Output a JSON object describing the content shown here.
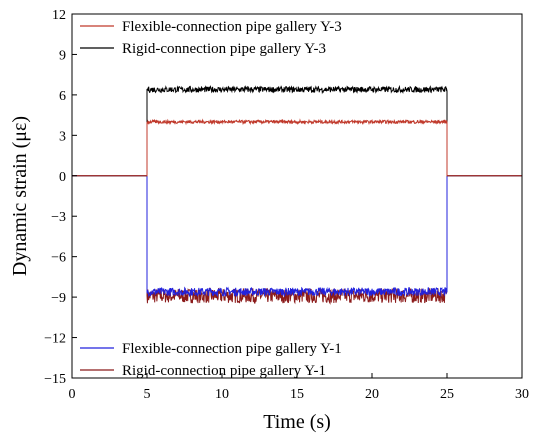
{
  "chart_data": {
    "type": "line",
    "title": "",
    "xlabel": "Time (s)",
    "ylabel": "Dynamic strain (με)",
    "xlim": [
      0,
      30
    ],
    "ylim": [
      -15,
      12
    ],
    "xticks": [
      0,
      5,
      10,
      15,
      20,
      25,
      30
    ],
    "yticks": [
      -15,
      -12,
      -9,
      -6,
      -3,
      0,
      3,
      6,
      9,
      12
    ],
    "grid": false,
    "legends": [
      {
        "placement": "top-left",
        "entries": [
          "Flexible-connection pipe gallery Y-3",
          "Rigid-connection pipe gallery  Y-3"
        ]
      },
      {
        "placement": "bottom-left",
        "entries": [
          "Flexible-connection pipe gallery Y-1",
          "Rigid-connection pipe gallery  Y-1"
        ]
      }
    ],
    "series": [
      {
        "name": "Flexible-connection pipe gallery Y-3",
        "color": "#c0392b",
        "x": [
          0,
          5,
          5,
          25,
          25,
          30
        ],
        "y": [
          0,
          0,
          4.0,
          4.0,
          0,
          0
        ],
        "noise_amplitude": 0.12
      },
      {
        "name": "Rigid-connection pipe gallery  Y-3",
        "color": "#000000",
        "x": [
          0,
          5,
          5,
          25,
          25,
          30
        ],
        "y": [
          0,
          0,
          6.4,
          6.4,
          0,
          0
        ],
        "noise_amplitude": 0.22
      },
      {
        "name": "Flexible-connection pipe gallery Y-1",
        "color": "#2222dd",
        "x": [
          0,
          5,
          5,
          25,
          25,
          30
        ],
        "y": [
          0,
          0,
          -8.6,
          -8.6,
          0,
          0
        ],
        "noise_amplitude": 0.3
      },
      {
        "name": "Rigid-connection pipe gallery  Y-1",
        "color": "#8b1a1a",
        "x": [
          0,
          5,
          5,
          25,
          25,
          30
        ],
        "y": [
          0,
          0,
          -8.9,
          -8.9,
          0,
          0
        ],
        "noise_amplitude": 0.55
      }
    ]
  }
}
